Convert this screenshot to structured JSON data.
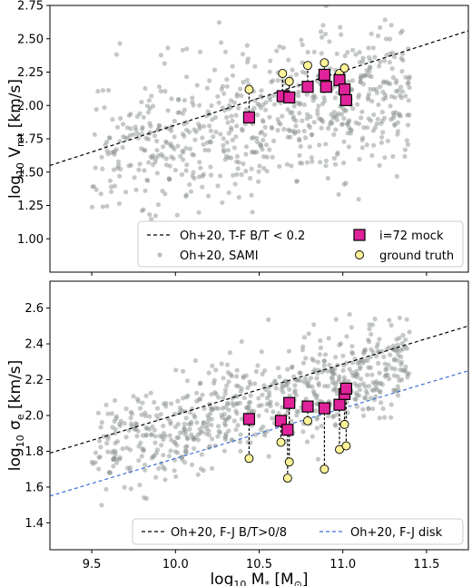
{
  "chart_data": [
    {
      "type": "scatter",
      "title": "",
      "xlabel": "",
      "ylabel_main": "log",
      "ylabel_sub": "10",
      "ylabel_tail": " V",
      "ylabel_tail_sub": "rot",
      "ylabel_unit": " [km/s]",
      "xlim": [
        9.25,
        11.75
      ],
      "ylim": [
        0.75,
        2.75
      ],
      "yticks": [
        1.0,
        1.25,
        1.5,
        1.75,
        2.0,
        2.25,
        2.5,
        2.75
      ],
      "ytick_labels": [
        "1.00",
        "1.25",
        "1.50",
        "1.75",
        "2.00",
        "2.25",
        "2.50",
        "2.75"
      ],
      "xticks": [
        9.5,
        10.0,
        10.5,
        11.0,
        11.5
      ],
      "show_xtick_labels": false,
      "legend_position": "lower-right",
      "lines": [
        {
          "name": "Oh+20, T-F B/T < 0.2",
          "color": "#000000",
          "x": [
            9.25,
            11.75
          ],
          "y": [
            1.55,
            2.56
          ]
        }
      ],
      "background": {
        "name": "Oh+20, SAMI",
        "color": "#8c948e",
        "x_range": [
          9.5,
          11.4
        ],
        "y_trend": {
          "slope": 0.28,
          "intercept": 1.83,
          "x0": 10.3
        },
        "scatter": 0.26,
        "count": 700,
        "seed": 7
      },
      "mock": {
        "name": "i=72 mock",
        "color": "#e0239a",
        "x": [
          10.44,
          10.64,
          10.68,
          10.79,
          10.89,
          10.9,
          10.98,
          11.01,
          11.02
        ],
        "y": [
          1.91,
          2.07,
          2.06,
          2.14,
          2.23,
          2.14,
          2.19,
          2.12,
          2.04
        ]
      },
      "truth": {
        "name": "ground truth",
        "color": "#fff39a",
        "x": [
          10.44,
          10.64,
          10.68,
          10.79,
          10.89,
          10.9,
          10.98,
          11.01,
          11.02
        ],
        "y": [
          2.12,
          2.24,
          2.18,
          2.3,
          2.32,
          2.24,
          2.24,
          2.28,
          2.03
        ]
      }
    },
    {
      "type": "scatter",
      "title": "",
      "xlabel": "",
      "ylabel_main": "log",
      "ylabel_sub": "10",
      "ylabel_tail": " σ",
      "ylabel_tail_sub": "e",
      "ylabel_unit": " [km/s]",
      "xlim": [
        9.25,
        11.75
      ],
      "ylim": [
        1.25,
        2.75
      ],
      "yticks": [
        1.4,
        1.6,
        1.8,
        2.0,
        2.2,
        2.4,
        2.6
      ],
      "ytick_labels": [
        "1.4",
        "1.6",
        "1.8",
        "2.0",
        "2.2",
        "2.4",
        "2.6"
      ],
      "xticks": [
        9.5,
        10.0,
        10.5,
        11.0,
        11.5
      ],
      "xtick_labels": [
        "9.5",
        "10.0",
        "10.5",
        "11.0",
        "11.5"
      ],
      "xlabel_main": "log",
      "xlabel_sub": "10",
      "xlabel_tail": " M",
      "xlabel_tail_sub": "*",
      "xlabel_unit": " [M",
      "xlabel_unit_sub": "⊙",
      "xlabel_close": "]",
      "show_xtick_labels": true,
      "legend_position": "bottom",
      "lines": [
        {
          "name": "Oh+20, F-J B/T>0/8",
          "color": "#000000",
          "x": [
            9.25,
            11.75
          ],
          "y": [
            1.79,
            2.5
          ]
        },
        {
          "name": "Oh+20, F-J disk",
          "color": "#3d6fd6",
          "x": [
            9.25,
            11.75
          ],
          "y": [
            1.55,
            2.25
          ]
        }
      ],
      "background": {
        "name": "Oh+20, SAMI",
        "color": "#8c948e",
        "x_range": [
          9.5,
          11.4
        ],
        "y_trend": {
          "slope": 0.27,
          "intercept": 2.02,
          "x0": 10.3
        },
        "scatter": 0.14,
        "count": 700,
        "seed": 19
      },
      "mock": {
        "name": "i=72 mock",
        "color": "#e0239a",
        "x": [
          10.44,
          10.63,
          10.67,
          10.68,
          10.79,
          10.89,
          10.98,
          11.01,
          11.02
        ],
        "y": [
          1.98,
          1.97,
          1.92,
          2.07,
          2.05,
          2.04,
          2.06,
          2.12,
          2.15
        ]
      },
      "truth": {
        "name": "ground truth",
        "color": "#fff39a",
        "x": [
          10.44,
          10.63,
          10.67,
          10.68,
          10.79,
          10.89,
          10.98,
          11.01,
          11.02
        ],
        "y": [
          1.76,
          1.85,
          1.65,
          1.74,
          1.97,
          1.7,
          1.81,
          1.95,
          1.83
        ]
      }
    }
  ]
}
